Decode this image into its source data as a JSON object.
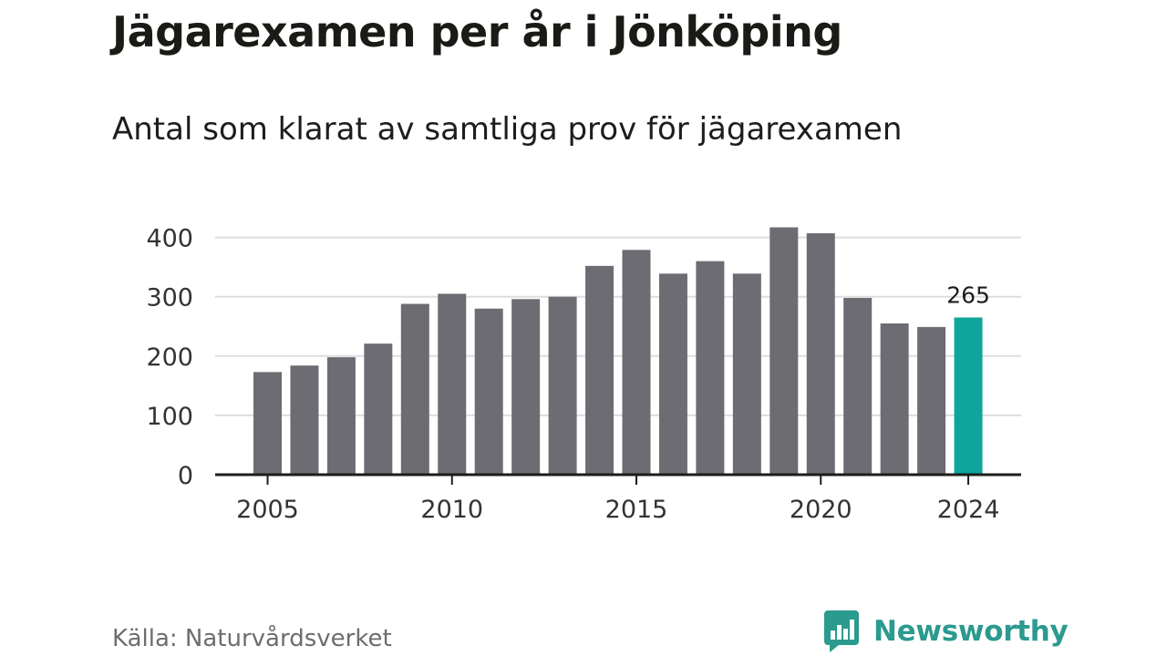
{
  "title": "Jägarexamen per år i Jönköping",
  "subtitle": "Antal som klarat av samtliga prov för jägarexamen",
  "source": "Källa: Naturvårdsverket",
  "brand": {
    "name": "Newsworthy",
    "icon": "newsworthy-logo-icon",
    "color": "#2b9a8f"
  },
  "chart_data": {
    "type": "bar",
    "categories": [
      "2005",
      "2006",
      "2007",
      "2008",
      "2009",
      "2010",
      "2011",
      "2012",
      "2013",
      "2014",
      "2015",
      "2016",
      "2017",
      "2018",
      "2019",
      "2020",
      "2021",
      "2022",
      "2023",
      "2024"
    ],
    "values": [
      173,
      184,
      198,
      221,
      288,
      305,
      280,
      296,
      300,
      352,
      379,
      339,
      360,
      339,
      417,
      407,
      298,
      255,
      249,
      265
    ],
    "x_ticks": [
      "2005",
      "2010",
      "2015",
      "2020",
      "2024"
    ],
    "y_ticks": [
      0,
      100,
      200,
      300,
      400
    ],
    "ylim": [
      0,
      440
    ],
    "grid": true,
    "highlight": {
      "category": "2024",
      "label": "265"
    },
    "colors": {
      "bar": "#6d6c73",
      "highlight": "#0ea59b",
      "grid": "#dddddd",
      "axis": "#1d1d1b"
    }
  }
}
